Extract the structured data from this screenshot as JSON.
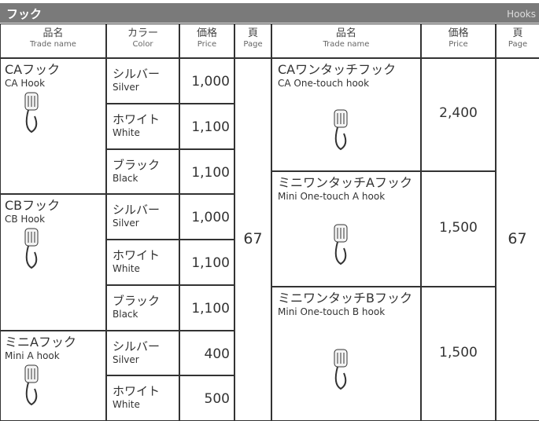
{
  "header": {
    "title": "フック",
    "subtitle": "Hooks"
  },
  "left_table": {
    "columns": [
      {
        "ja": "品名",
        "en": "Trade name"
      },
      {
        "ja": "カラー",
        "en": "Color"
      },
      {
        "ja": "価格",
        "en": "Price"
      },
      {
        "ja": "頁",
        "en": "Page"
      }
    ],
    "products": [
      {
        "name_ja": "CAフック",
        "name_en": "CA Hook",
        "variants": [
          {
            "color_ja": "シルバー",
            "color_en": "Silver",
            "price": "1,000"
          },
          {
            "color_ja": "ホワイト",
            "color_en": "White",
            "price": "1,100"
          },
          {
            "color_ja": "ブラック",
            "color_en": "Black",
            "price": "1,100"
          }
        ]
      },
      {
        "name_ja": "CBフック",
        "name_en": "CB Hook",
        "variants": [
          {
            "color_ja": "シルバー",
            "color_en": "Silver",
            "price": "1,000"
          },
          {
            "color_ja": "ホワイト",
            "color_en": "White",
            "price": "1,100"
          },
          {
            "color_ja": "ブラック",
            "color_en": "Black",
            "price": "1,100"
          }
        ]
      },
      {
        "name_ja": "ミニAフック",
        "name_en": "Mini A hook",
        "variants": [
          {
            "color_ja": "シルバー",
            "color_en": "Silver",
            "price": "400"
          },
          {
            "color_ja": "ホワイト",
            "color_en": "White",
            "price": "500"
          }
        ]
      }
    ],
    "page": "67"
  },
  "right_table": {
    "columns": [
      {
        "ja": "品名",
        "en": "Trade name"
      },
      {
        "ja": "価格",
        "en": "Price"
      },
      {
        "ja": "頁",
        "en": "Page"
      }
    ],
    "products": [
      {
        "name_ja": "CAワンタッチフック",
        "name_en": "CA One-touch hook",
        "price": "2,400"
      },
      {
        "name_ja": "ミニワンタッチAフック",
        "name_en": "Mini One-touch A hook",
        "price": "1,500"
      },
      {
        "name_ja": "ミニワンタッチBフック",
        "name_en": "Mini One-touch B hook",
        "price": "1,500"
      }
    ],
    "page": "67"
  }
}
